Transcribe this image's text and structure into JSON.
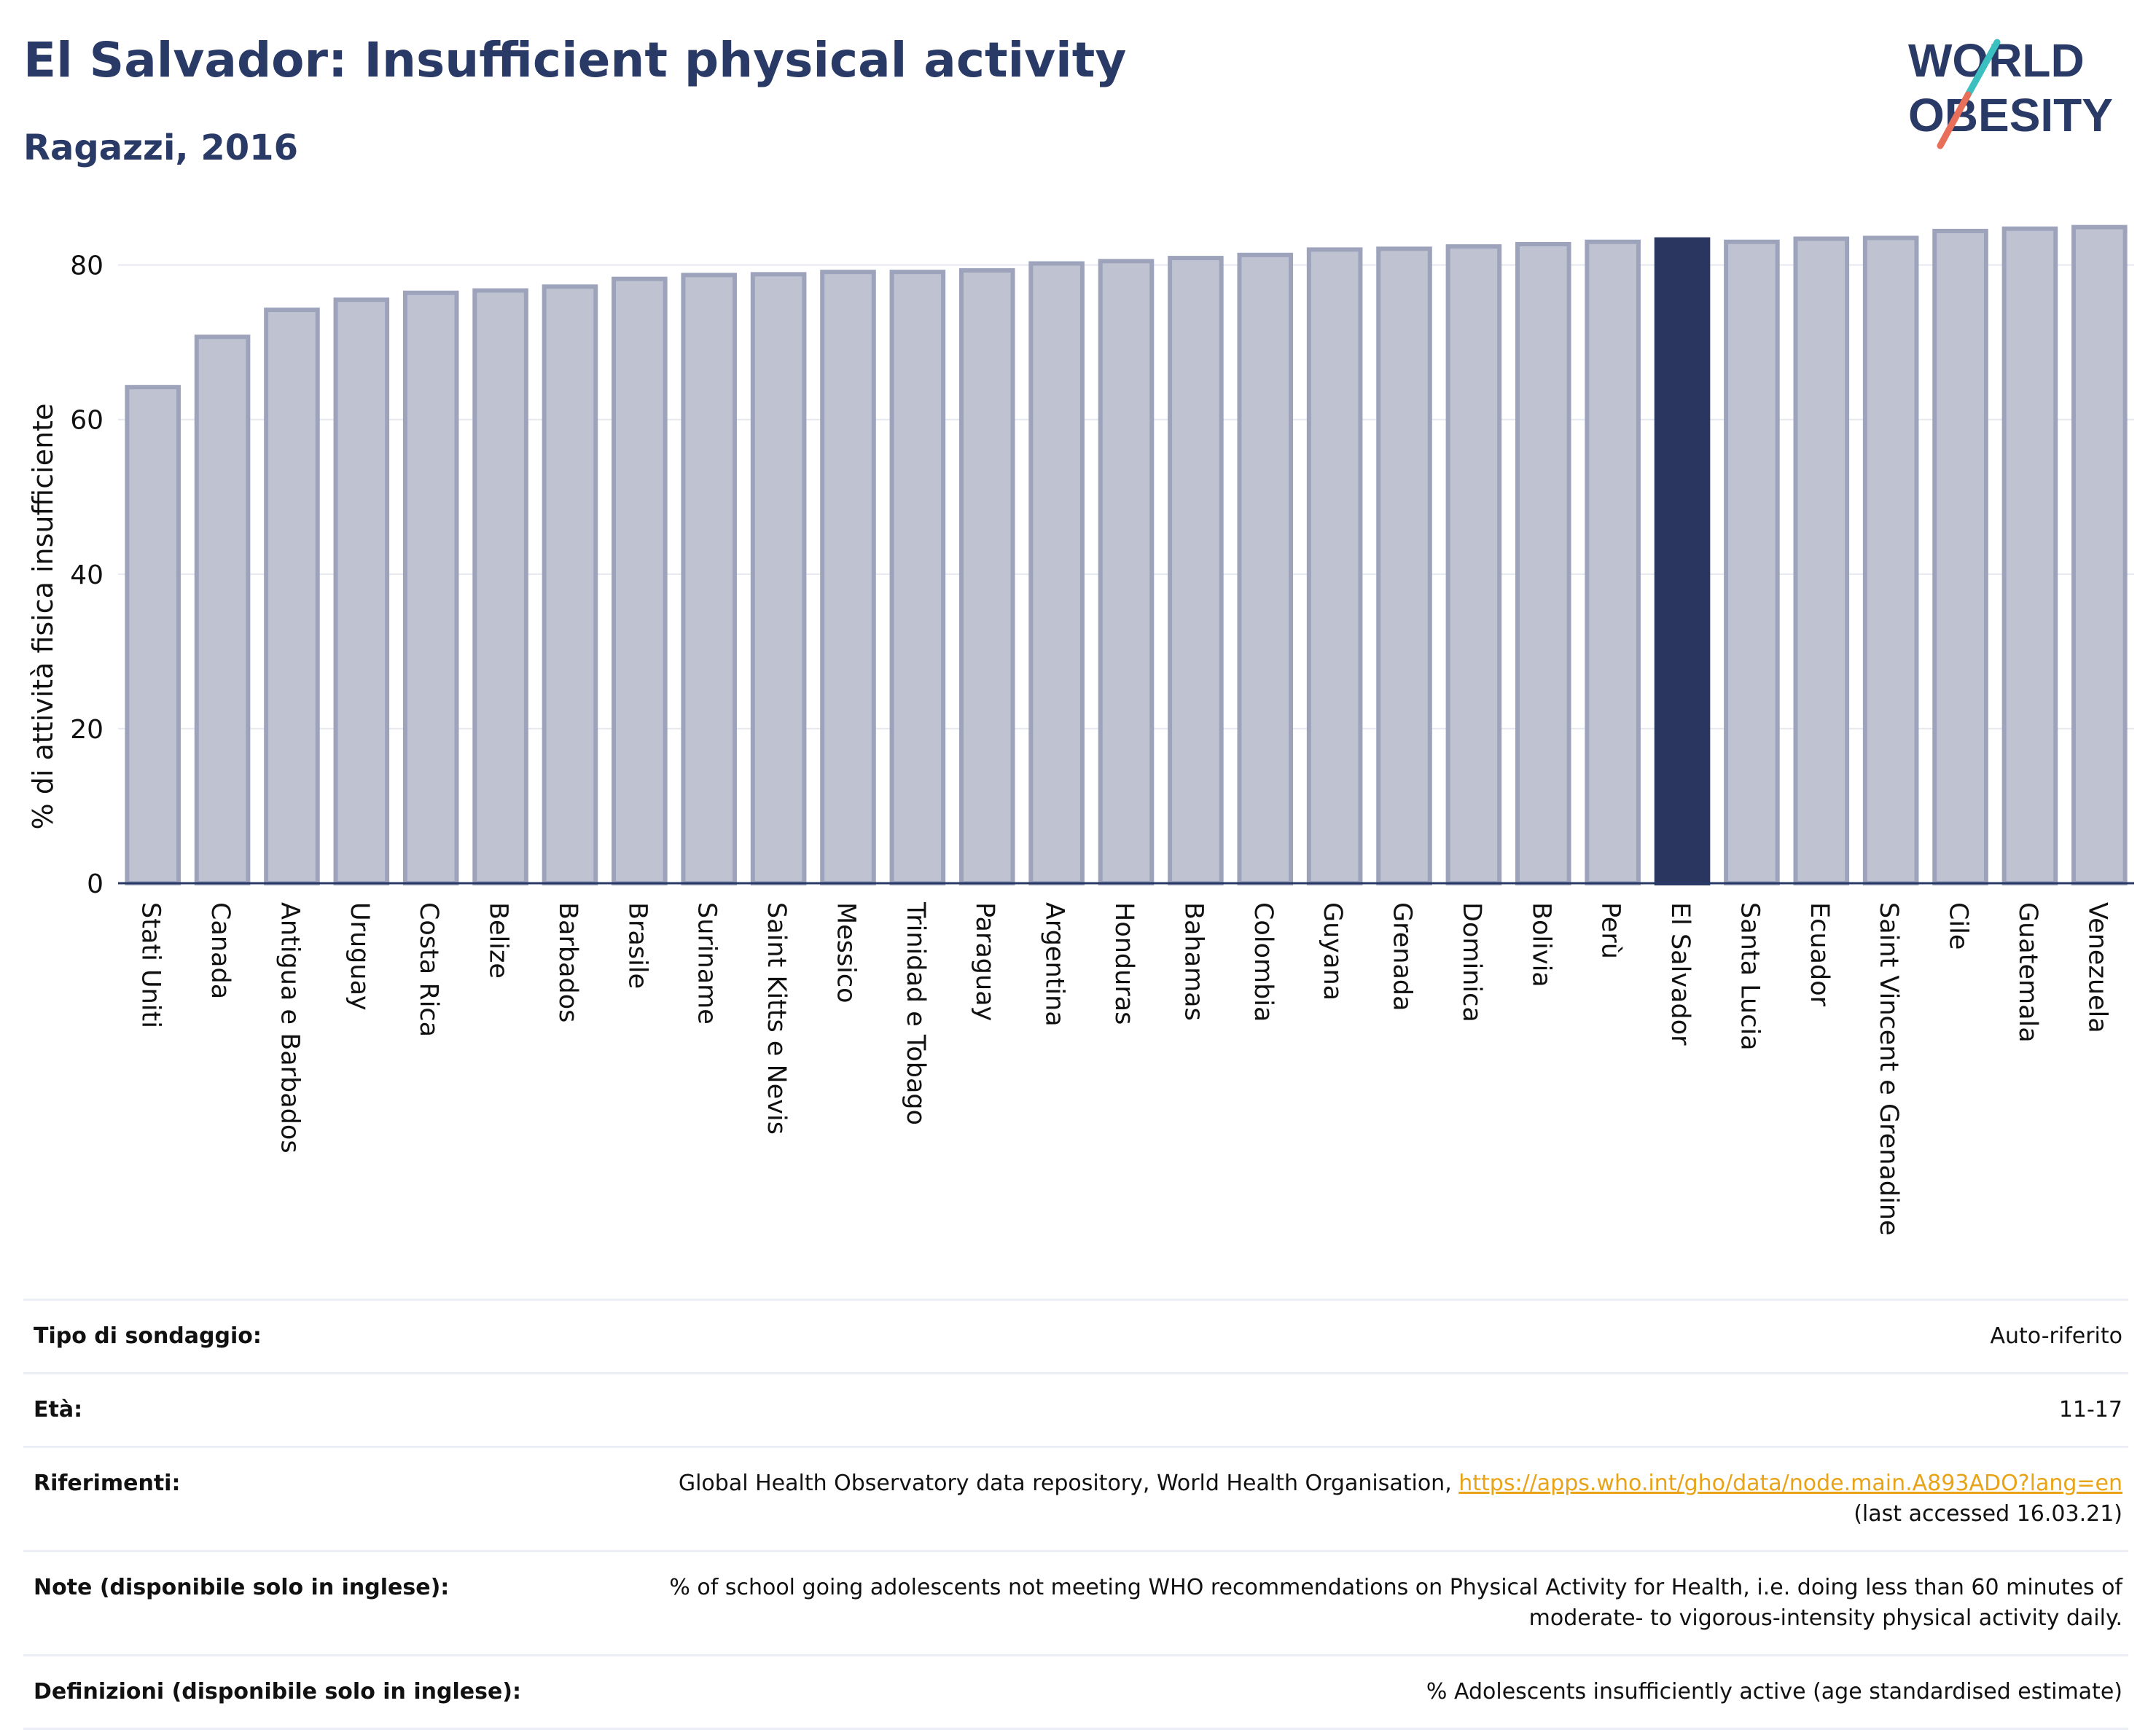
{
  "title": "El Salvador: Insufficient physical activity",
  "subtitle": "Ragazzi, 2016",
  "logo": {
    "line1": "WORLD",
    "line2": "OBESITY",
    "accent_colors": [
      "#3bbfbf",
      "#e8705a"
    ]
  },
  "colors": {
    "bar": "#bfc3d1",
    "bar_stroke": "#9ea3bc",
    "highlight": "#2a3560",
    "title": "#2a3a67"
  },
  "chart_data": {
    "type": "bar",
    "ylabel": "% di attività fisica insufficiente",
    "ylim": [
      0,
      86
    ],
    "yticks": [
      0,
      20,
      40,
      60,
      80
    ],
    "grid": true,
    "highlight": "El Salvador",
    "categories": [
      "Stati Uniti",
      "Canada",
      "Antigua e Barbados",
      "Uruguay",
      "Costa Rica",
      "Belize",
      "Barbados",
      "Brasile",
      "Suriname",
      "Saint Kitts e Nevis",
      "Messico",
      "Trinidad e Tobago",
      "Paraguay",
      "Argentina",
      "Honduras",
      "Bahamas",
      "Colombia",
      "Guyana",
      "Grenada",
      "Dominica",
      "Bolivia",
      "Perù",
      "El Salvador",
      "Santa Lucia",
      "Ecuador",
      "Saint Vincent e Grenadine",
      "Cile",
      "Guatemala",
      "Venezuela"
    ],
    "values": [
      64.2,
      70.7,
      74.2,
      75.5,
      76.4,
      76.7,
      77.2,
      78.2,
      78.7,
      78.8,
      79.1,
      79.1,
      79.3,
      80.2,
      80.5,
      80.9,
      81.3,
      82.0,
      82.1,
      82.4,
      82.7,
      83.0,
      83.3,
      83.0,
      83.4,
      83.5,
      84.4,
      84.7,
      84.9
    ]
  },
  "meta": [
    {
      "label": "Tipo di sondaggio:",
      "value": "Auto-riferito"
    },
    {
      "label": "Età:",
      "value": "11-17"
    },
    {
      "label": "Riferimenti:",
      "value": "Global Health Observatory data repository, World Health Organisation, ",
      "link": "https://apps.who.int/gho/data/node.main.A893ADO?lang=en",
      "value2": "(last accessed 16.03.21)"
    },
    {
      "label": "Note (disponibile solo in inglese):",
      "value": "% of school going adolescents not meeting WHO recommendations on Physical Activity for Health, i.e. doing less than 60 minutes of moderate- to vigorous-intensity physical activity daily."
    },
    {
      "label": "Definizioni (disponibile solo in inglese):",
      "value": "% Adolescents insufficiently active (age standardised estimate)"
    }
  ]
}
